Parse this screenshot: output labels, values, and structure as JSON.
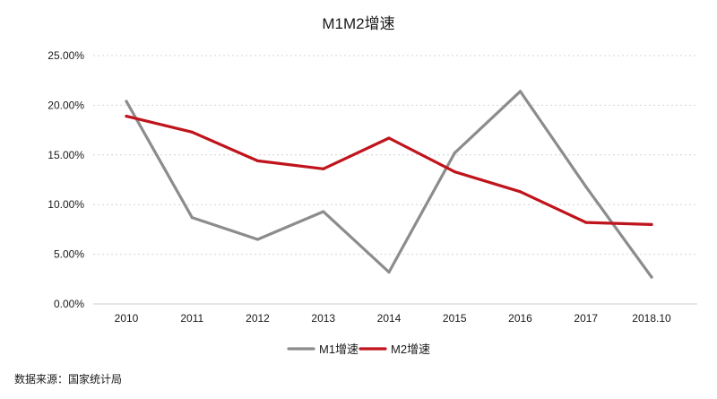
{
  "chart_data": {
    "type": "line",
    "title": "M1M2增速",
    "categories": [
      "2010",
      "2011",
      "2012",
      "2013",
      "2014",
      "2015",
      "2016",
      "2017",
      "2018.10"
    ],
    "y_tick_labels": [
      "0.00%",
      "5.00%",
      "10.00%",
      "15.00%",
      "20.00%",
      "25.00%"
    ],
    "y_ticks": [
      0,
      5,
      10,
      15,
      20,
      25
    ],
    "ylim": [
      0,
      25
    ],
    "unit": "%",
    "grid": true,
    "legend_position": "bottom",
    "series": [
      {
        "name": "M1增速",
        "color": "#8c8c8c",
        "values": [
          20.4,
          8.7,
          6.5,
          9.3,
          3.2,
          15.2,
          21.4,
          11.8,
          2.7
        ]
      },
      {
        "name": "M2增速",
        "color": "#c0141c",
        "values": [
          18.9,
          17.3,
          14.4,
          13.6,
          16.7,
          13.3,
          11.3,
          8.2,
          8.0
        ]
      }
    ]
  },
  "source_note": "数据来源：国家统计局"
}
